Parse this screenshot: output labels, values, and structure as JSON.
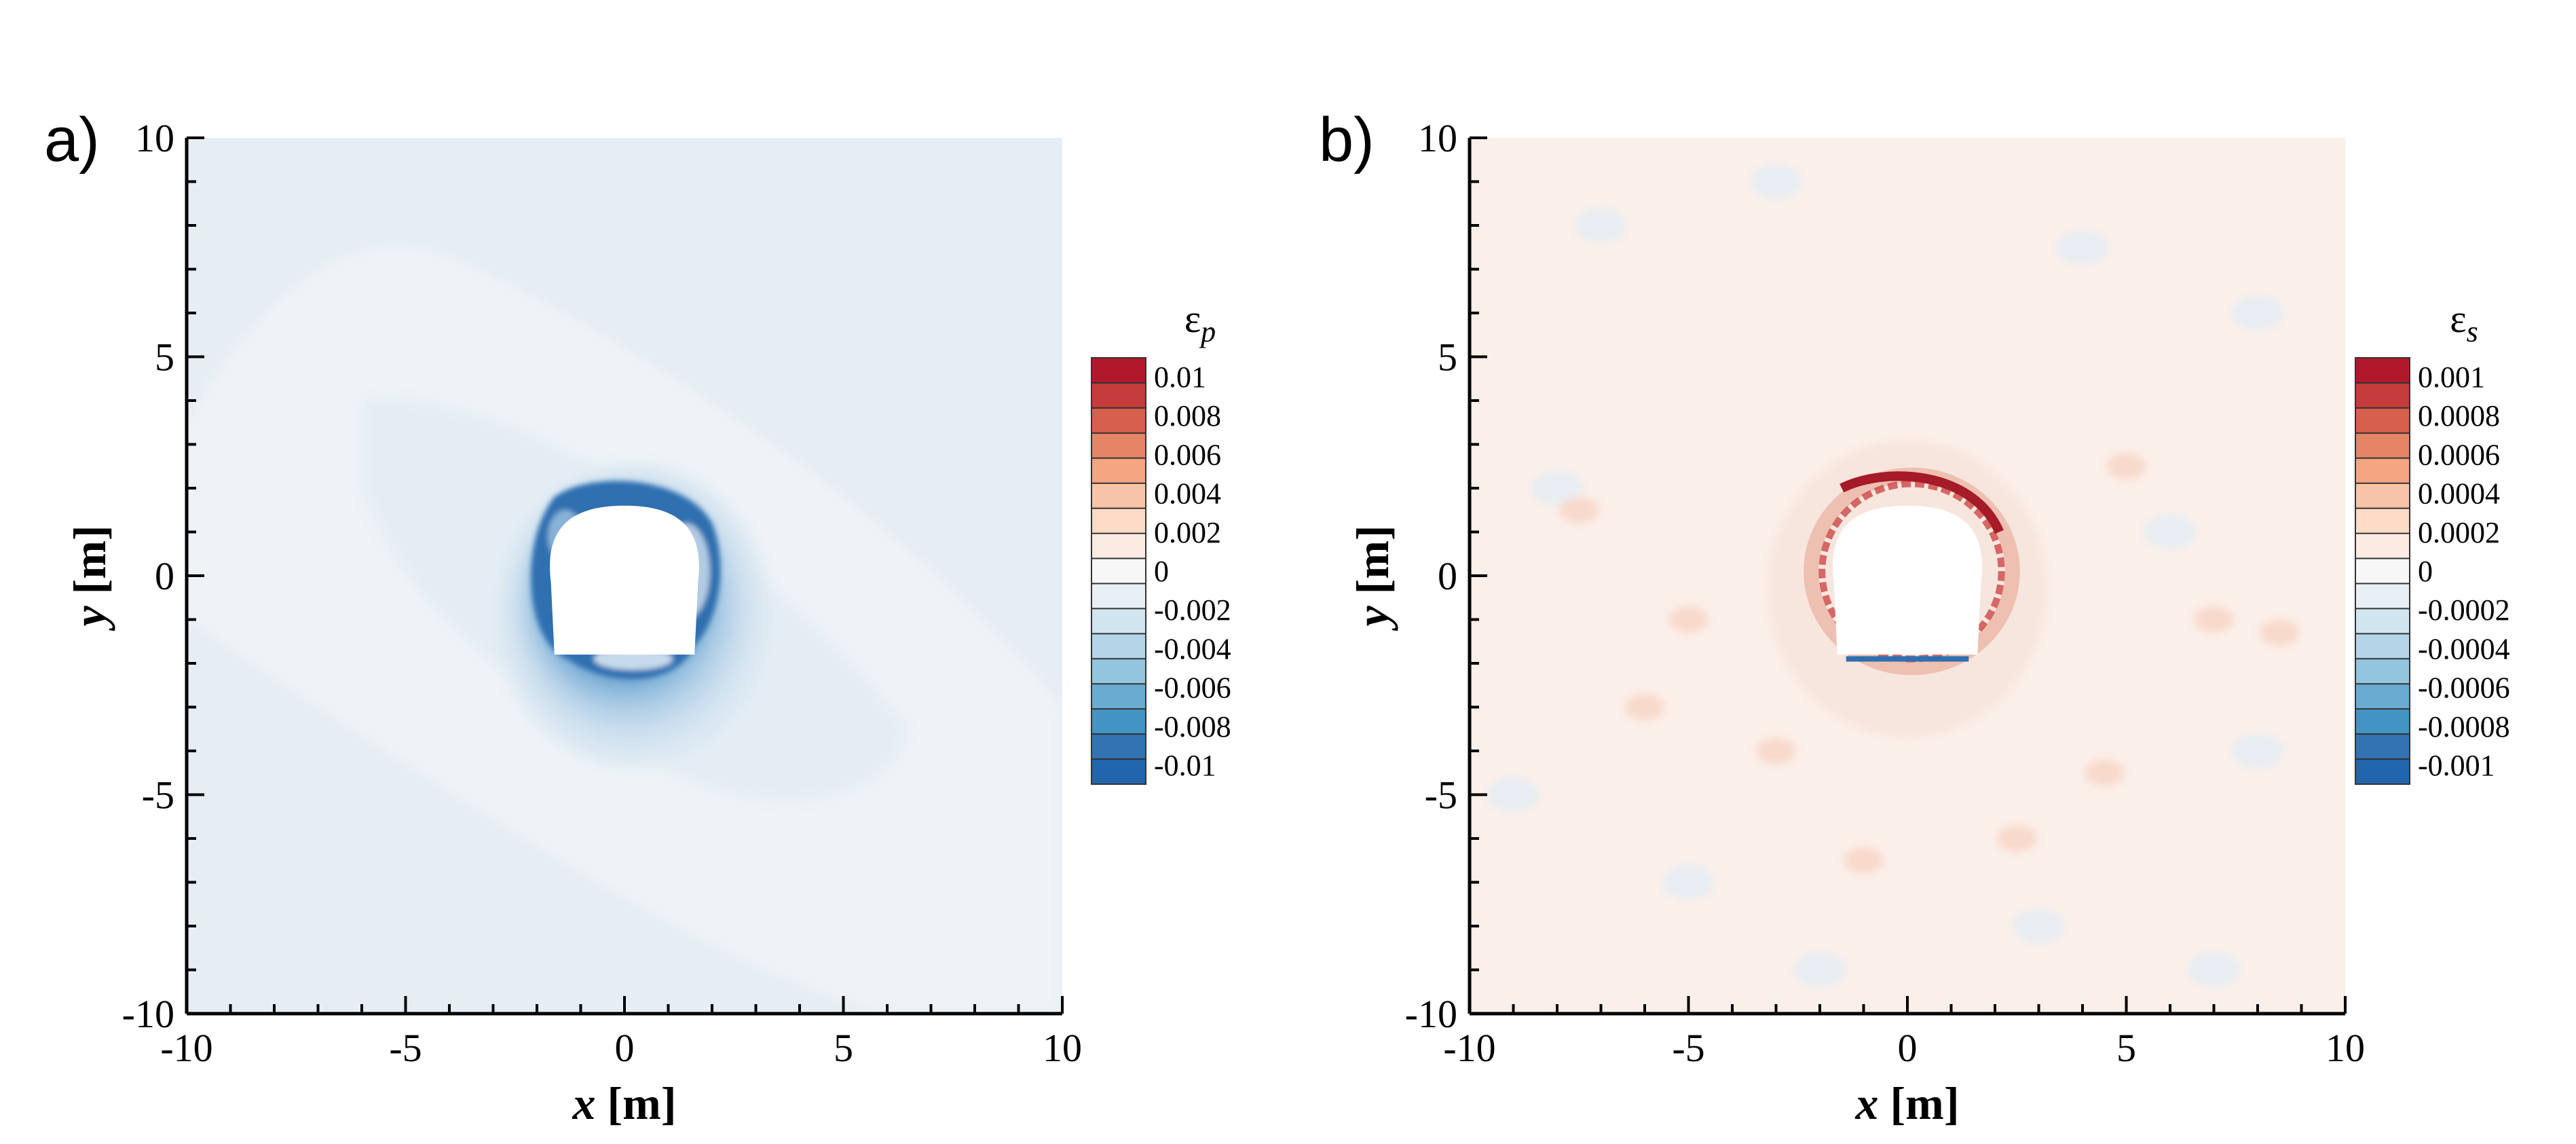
{
  "chart_data": [
    {
      "type": "heatmap",
      "panel_label": "a)",
      "xlabel_var": "x",
      "xlabel_unit": " [m]",
      "ylabel_var": "y",
      "ylabel_unit": " [m]",
      "xlim": [
        -10,
        10
      ],
      "ylim": [
        -10,
        10
      ],
      "x_ticks": [
        "-10",
        "-5",
        "0",
        "5",
        "10"
      ],
      "y_ticks": [
        "-10",
        "-5",
        "0",
        "5",
        "10"
      ],
      "colorbar": {
        "symbol": "ε",
        "subscript": "p",
        "levels": [
          "0.01",
          "0.008",
          "0.006",
          "0.004",
          "0.002",
          "0",
          "-0.002",
          "-0.004",
          "-0.006",
          "-0.008",
          "-0.01"
        ],
        "colors": [
          "#b2182b",
          "#c43c3c",
          "#d6604d",
          "#e58467",
          "#f4a582",
          "#f8c4a8",
          "#fddbc7",
          "#fbebe2",
          "#f7f7f7",
          "#e8eff5",
          "#d1e5f0",
          "#b5d4e8",
          "#92c5de",
          "#6aabd2",
          "#4393c3",
          "#3274b2",
          "#2166ac"
        ]
      },
      "field": {
        "background": "#e6edf3",
        "opening": {
          "top_y": 1.6,
          "bottom_y": -1.8,
          "half_width": 1.6
        }
      }
    },
    {
      "type": "heatmap",
      "panel_label": "b)",
      "xlabel_var": "x",
      "xlabel_unit": " [m]",
      "ylabel_var": "y",
      "ylabel_unit": " [m]",
      "xlim": [
        -10,
        10
      ],
      "ylim": [
        -10,
        10
      ],
      "x_ticks": [
        "-10",
        "-5",
        "0",
        "5",
        "10"
      ],
      "y_ticks": [
        "-10",
        "-5",
        "0",
        "5",
        "10"
      ],
      "colorbar": {
        "symbol": "ε",
        "subscript": "s",
        "levels": [
          "0.001",
          "0.0008",
          "0.0006",
          "0.0004",
          "0.0002",
          "0",
          "-0.0002",
          "-0.0004",
          "-0.0006",
          "-0.0008",
          "-0.001"
        ],
        "colors": [
          "#b2182b",
          "#c43c3c",
          "#d6604d",
          "#e58467",
          "#f4a582",
          "#f8c4a8",
          "#fddbc7",
          "#fbebe2",
          "#f7f7f7",
          "#e8eff5",
          "#d1e5f0",
          "#b5d4e8",
          "#92c5de",
          "#6aabd2",
          "#4393c3",
          "#3274b2",
          "#2166ac"
        ]
      },
      "field": {
        "background": "#fbefe9",
        "opening": {
          "top_y": 1.6,
          "bottom_y": -1.8,
          "half_width": 1.6
        }
      }
    }
  ]
}
